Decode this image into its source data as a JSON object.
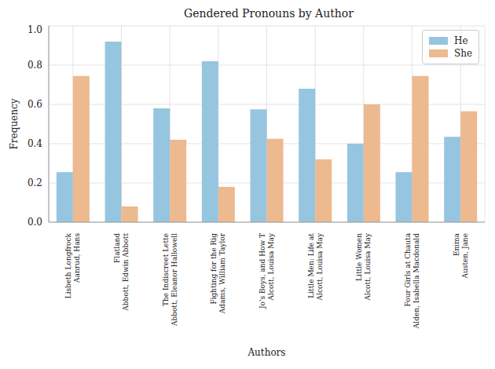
{
  "chart_data": {
    "type": "bar",
    "title": "Gendered Pronouns by Author",
    "x_label": "Authors",
    "y_label": "Frequency",
    "categories": [
      "Lisbeth Longfrock\nAanrud, Hans",
      "Flatland\nAbbott, Edwin Abbott",
      "The Indiscreet Lette\nAbbott, Eleanor Hallowell",
      "Fighting for the Rig\nAdams, William Taylor",
      "Jo's Boys, and How T\nAlcott, Louisa May",
      "Little Men: Life at\nAlcott, Louisa May",
      "Little Women\nAlcott, Louisa May",
      "Four Girls at Chauta\nAlden, Isabella Macdonald",
      "Emma\nAusten, Jane"
    ],
    "series": [
      {
        "name": "He",
        "color": "#96c5e0",
        "values": [
          0.255,
          0.92,
          0.58,
          0.82,
          0.575,
          0.68,
          0.4,
          0.255,
          0.435
        ]
      },
      {
        "name": "She",
        "color": "#edb98f",
        "values": [
          0.745,
          0.08,
          0.42,
          0.18,
          0.425,
          0.32,
          0.6,
          0.745,
          0.565
        ]
      }
    ],
    "ylim": [
      0,
      1
    ],
    "yticks": [
      {
        "value": 0,
        "label": "0.0"
      },
      {
        "value": 0.2,
        "label": "0.2"
      },
      {
        "value": 0.4,
        "label": "0.4"
      },
      {
        "value": 0.6,
        "label": "0.6"
      },
      {
        "value": 0.8,
        "label": "0.8"
      },
      {
        "value": 1,
        "label": "1.0"
      }
    ],
    "grid": true,
    "legend": "upper right"
  }
}
